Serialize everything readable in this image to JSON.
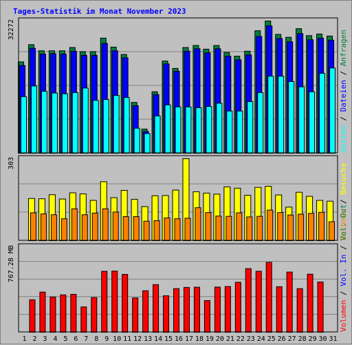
{
  "title": "Tages-Statistik im Monat November 2023",
  "chart_data": [
    {
      "type": "bar",
      "panel": "hits",
      "y_max_label": "32272",
      "categories": [
        "1",
        "2",
        "3",
        "4",
        "5",
        "6",
        "7",
        "8",
        "9",
        "10",
        "11",
        "12",
        "13",
        "14",
        "15",
        "16",
        "17",
        "18",
        "19",
        "20",
        "21",
        "22",
        "23",
        "24",
        "25",
        "26",
        "27",
        "28",
        "29",
        "30",
        "31"
      ],
      "weekend_days": [
        "4",
        "5",
        "11",
        "12",
        "18",
        "19",
        "25",
        "26"
      ],
      "ylim": [
        0,
        32272
      ],
      "series": [
        {
          "name": "Anfragen",
          "color": "#008040",
          "values": [
            22300,
            26500,
            25000,
            25000,
            25000,
            25800,
            24800,
            24800,
            28100,
            25900,
            24100,
            12400,
            5900,
            15000,
            22500,
            20700,
            25800,
            26300,
            25400,
            26300,
            24600,
            23700,
            24900,
            29900,
            32272,
            29000,
            28300,
            30400,
            28700,
            29100,
            28600
          ]
        },
        {
          "name": "Dateien",
          "color": "#0000ff",
          "values": [
            21400,
            25600,
            24200,
            24300,
            24200,
            24900,
            23900,
            23900,
            26800,
            25000,
            23300,
            11600,
            5300,
            14300,
            21800,
            20000,
            24900,
            25500,
            24500,
            25500,
            23700,
            22800,
            24000,
            28500,
            31100,
            28000,
            27200,
            29200,
            27700,
            28100,
            27600
          ]
        },
        {
          "name": "Seiten",
          "color": "#00ffff",
          "values": [
            13800,
            16400,
            15100,
            14700,
            14500,
            14800,
            15900,
            12900,
            13100,
            14100,
            13600,
            6100,
            4800,
            9100,
            11800,
            11300,
            11300,
            11100,
            11400,
            12200,
            10300,
            10300,
            12600,
            14800,
            18800,
            18800,
            17500,
            16200,
            15000,
            19500,
            20800
          ]
        }
      ]
    },
    {
      "type": "bar",
      "panel": "visits",
      "y_max_label": "303",
      "categories": [
        "1",
        "2",
        "3",
        "4",
        "5",
        "6",
        "7",
        "8",
        "9",
        "10",
        "11",
        "12",
        "13",
        "14",
        "15",
        "16",
        "17",
        "18",
        "19",
        "20",
        "21",
        "22",
        "23",
        "24",
        "25",
        "26",
        "27",
        "28",
        "29",
        "30",
        "31"
      ],
      "ylim": [
        0,
        303
      ],
      "series": [
        {
          "name": "Besuche",
          "color": "#ffff00",
          "values": [
            0,
            156,
            155,
            170,
            154,
            177,
            173,
            149,
            218,
            159,
            186,
            153,
            126,
            166,
            167,
            187,
            303,
            181,
            176,
            172,
            199,
            194,
            168,
            197,
            201,
            169,
            124,
            179,
            164,
            149,
            146
          ]
        },
        {
          "name": "Rechner",
          "color": "#ff8000",
          "values": [
            0,
            103,
            99,
            96,
            81,
            118,
            96,
            102,
            118,
            106,
            89,
            89,
            72,
            74,
            84,
            81,
            83,
            122,
            104,
            91,
            90,
            103,
            88,
            90,
            113,
            104,
            95,
            98,
            101,
            105,
            70
          ]
        }
      ]
    },
    {
      "type": "bar",
      "panel": "traffic",
      "y_max_label": "767.28 MB",
      "categories": [
        "1",
        "2",
        "3",
        "4",
        "5",
        "6",
        "7",
        "8",
        "9",
        "10",
        "11",
        "12",
        "13",
        "14",
        "15",
        "16",
        "17",
        "18",
        "19",
        "20",
        "21",
        "22",
        "23",
        "24",
        "25",
        "26",
        "27",
        "28",
        "29",
        "30",
        "31"
      ],
      "ylim": [
        0,
        767.28
      ],
      "series": [
        {
          "name": "Volumen",
          "color": "#ff0000",
          "values": [
            0,
            292,
            361,
            317,
            336,
            341,
            228,
            312,
            548,
            550,
            520,
            309,
            373,
            428,
            328,
            392,
            403,
            405,
            285,
            406,
            411,
            449,
            572,
            548,
            628,
            409,
            541,
            392,
            522,
            452,
            0
          ]
        }
      ]
    }
  ],
  "right_labels": {
    "panel1": [
      {
        "text": "Seiten",
        "color": "#00ffff"
      },
      {
        "text": " / ",
        "color": "#000000"
      },
      {
        "text": "Dateien",
        "color": "#0000ff"
      },
      {
        "text": " / ",
        "color": "#000000"
      },
      {
        "text": "Anfragen",
        "color": "#008040"
      }
    ],
    "panel2": [
      {
        "text": "Rechner",
        "color": "#ff8000"
      },
      {
        "text": " / ",
        "color": "#000000"
      },
      {
        "text": "Besuche",
        "color": "#ffff00"
      }
    ],
    "panel3": [
      {
        "text": "Volumen",
        "color": "#ff0000"
      },
      {
        "text": " / ",
        "color": "#000000"
      },
      {
        "text": "Vol. In",
        "color": "#0000ff"
      },
      {
        "text": " / ",
        "color": "#000000"
      },
      {
        "text": "Vol. Out",
        "color": "#008040"
      }
    ]
  },
  "colors": {
    "background": "#c0c0c0",
    "grid": "#808080",
    "weekday_label": "#000000",
    "weekend_label": "#008040"
  }
}
